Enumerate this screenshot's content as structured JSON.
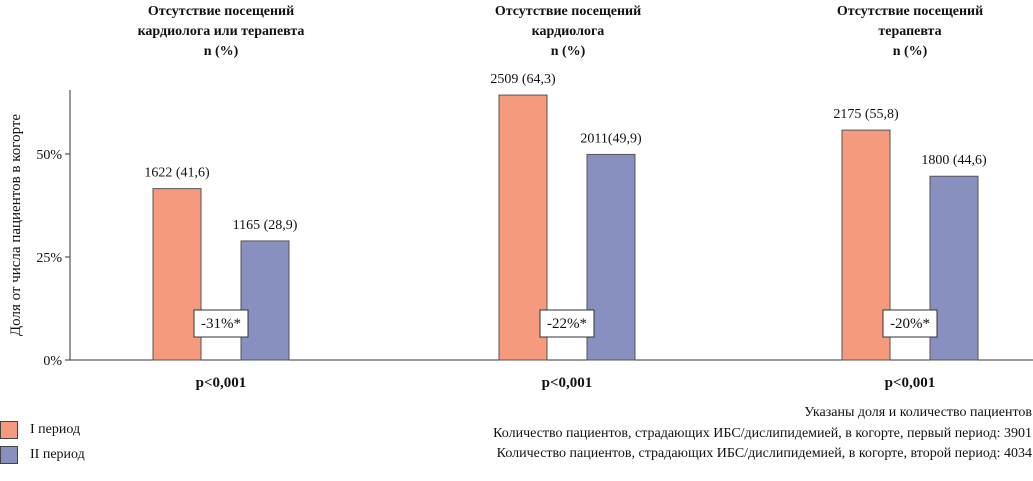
{
  "chart_data": {
    "type": "bar",
    "ylabel": "Доля от числа пациентов в когорте",
    "ylim": [
      0,
      65
    ],
    "yticks": [
      0,
      25,
      50
    ],
    "ytick_labels": [
      "0%",
      "25%",
      "50%"
    ],
    "grid": false,
    "legend_position": "bottom-left",
    "categories": [
      {
        "title_lines": [
          "Отсутствие посещений",
          "кардиолога или терапевта",
          "n (%)"
        ],
        "p_value": "p<0,001",
        "change": "-31%*"
      },
      {
        "title_lines": [
          "Отсутствие посещений",
          "кардиолога",
          "n (%)"
        ],
        "p_value": "p<0,001",
        "change": "-22%*"
      },
      {
        "title_lines": [
          "Отсутствие посещений",
          "терапевта",
          "n (%)"
        ],
        "p_value": "p<0,001",
        "change": "-20%*"
      }
    ],
    "series": [
      {
        "name": "I период",
        "color": "#f59a7c",
        "values": [
          41.6,
          64.3,
          55.8
        ],
        "labels": [
          "1622 (41,6)",
          "2509 (64,3)",
          "2175 (55,8)"
        ]
      },
      {
        "name": "II период",
        "color": "#8890bf",
        "values": [
          28.9,
          49.9,
          44.6
        ],
        "labels": [
          "1165 (28,9)",
          "2011(49,9)",
          "1800 (44,6)"
        ]
      }
    ]
  },
  "notes": [
    "Указаны доля и количество пациентов",
    "Количество пациентов, страдающих ИБС/дислипидемией, в когорте, первый период: 3901",
    "Количество пациентов, страдающих ИБС/дислипидемией, в когорте, второй период: 4034"
  ]
}
